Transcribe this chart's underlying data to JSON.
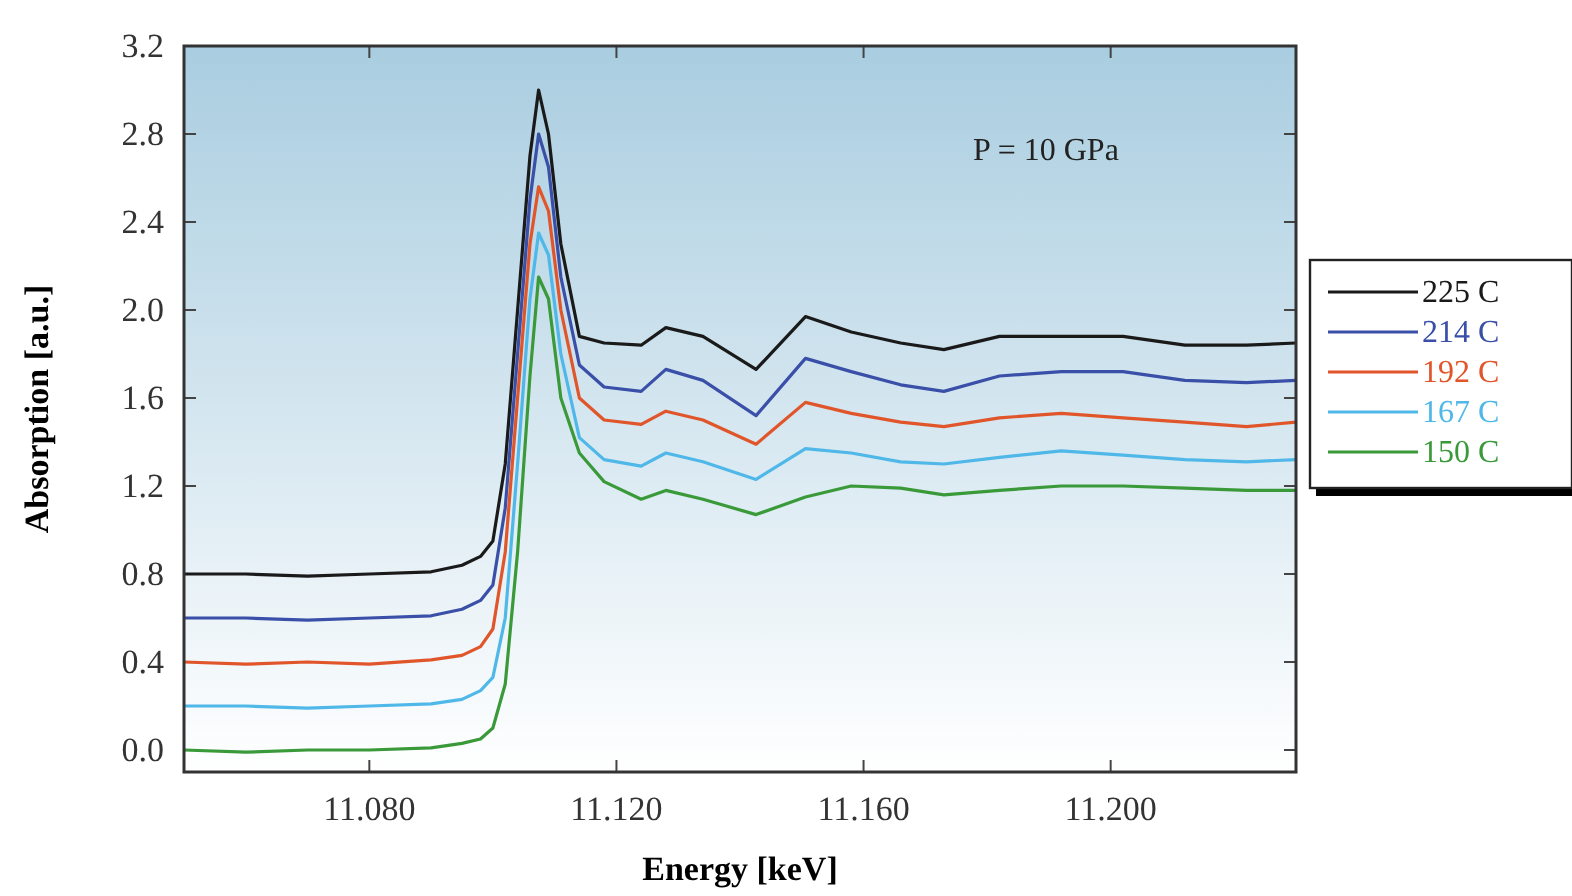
{
  "chart_data": {
    "type": "line",
    "xlabel": "Energy [keV]",
    "ylabel": "Absorption [a.u.]",
    "annotations": [
      "P = 10 GPa"
    ],
    "x": [
      11.05,
      11.06,
      11.07,
      11.08,
      11.09,
      11.095,
      11.098,
      11.1,
      11.102,
      11.104,
      11.106,
      11.1074,
      11.109,
      11.111,
      11.114,
      11.118,
      11.124,
      11.128,
      11.134,
      11.1426,
      11.1506,
      11.158,
      11.166,
      11.173,
      11.182,
      11.192,
      11.202,
      11.212,
      11.222,
      11.23
    ],
    "series": [
      {
        "name": "225 C",
        "color": "#1a1a1a",
        "values": [
          0.8,
          0.8,
          0.79,
          0.8,
          0.81,
          0.84,
          0.88,
          0.95,
          1.3,
          2.0,
          2.7,
          3.0,
          2.8,
          2.3,
          1.88,
          1.85,
          1.84,
          1.92,
          1.88,
          1.73,
          1.97,
          1.9,
          1.85,
          1.82,
          1.88,
          1.88,
          1.88,
          1.84,
          1.84,
          1.85
        ]
      },
      {
        "name": "214 C",
        "color": "#3a4fa8",
        "values": [
          0.6,
          0.6,
          0.59,
          0.6,
          0.61,
          0.64,
          0.68,
          0.75,
          1.1,
          1.8,
          2.5,
          2.8,
          2.65,
          2.15,
          1.75,
          1.65,
          1.63,
          1.73,
          1.68,
          1.52,
          1.78,
          1.72,
          1.66,
          1.63,
          1.7,
          1.72,
          1.72,
          1.68,
          1.67,
          1.68
        ]
      },
      {
        "name": "192 C",
        "color": "#e0552a",
        "values": [
          0.4,
          0.39,
          0.4,
          0.39,
          0.41,
          0.43,
          0.47,
          0.55,
          0.9,
          1.6,
          2.3,
          2.56,
          2.45,
          2.0,
          1.6,
          1.5,
          1.48,
          1.54,
          1.5,
          1.39,
          1.58,
          1.53,
          1.49,
          1.47,
          1.51,
          1.53,
          1.51,
          1.49,
          1.47,
          1.49
        ]
      },
      {
        "name": "167 C",
        "color": "#4fb8e8",
        "values": [
          0.2,
          0.2,
          0.19,
          0.2,
          0.21,
          0.23,
          0.27,
          0.33,
          0.6,
          1.3,
          2.05,
          2.35,
          2.25,
          1.8,
          1.42,
          1.32,
          1.29,
          1.35,
          1.31,
          1.23,
          1.37,
          1.35,
          1.31,
          1.3,
          1.33,
          1.36,
          1.34,
          1.32,
          1.31,
          1.32
        ]
      },
      {
        "name": "150 C",
        "color": "#3a9a3a",
        "values": [
          0.0,
          -0.01,
          0.0,
          0.0,
          0.01,
          0.03,
          0.05,
          0.1,
          0.3,
          0.9,
          1.7,
          2.15,
          2.05,
          1.6,
          1.35,
          1.22,
          1.14,
          1.18,
          1.14,
          1.07,
          1.15,
          1.2,
          1.19,
          1.16,
          1.18,
          1.2,
          1.2,
          1.19,
          1.18,
          1.18
        ]
      }
    ],
    "xlim": [
      11.05,
      11.23
    ],
    "ylim": [
      -0.1,
      3.2
    ],
    "xticks": [
      {
        "value": 11.08,
        "label": "11.080"
      },
      {
        "value": 11.12,
        "label": "11.120"
      },
      {
        "value": 11.16,
        "label": "11.160"
      },
      {
        "value": 11.2,
        "label": "11.200"
      }
    ],
    "yticks": [
      {
        "value": 0,
        "label": "0.0"
      },
      0.4,
      0.8,
      1.2,
      1.6,
      {
        "value": 2,
        "label": "2.0"
      },
      2.4,
      2.8,
      3.2
    ],
    "grid": false,
    "legend": "right",
    "marker": "none",
    "line_style": "solid"
  }
}
